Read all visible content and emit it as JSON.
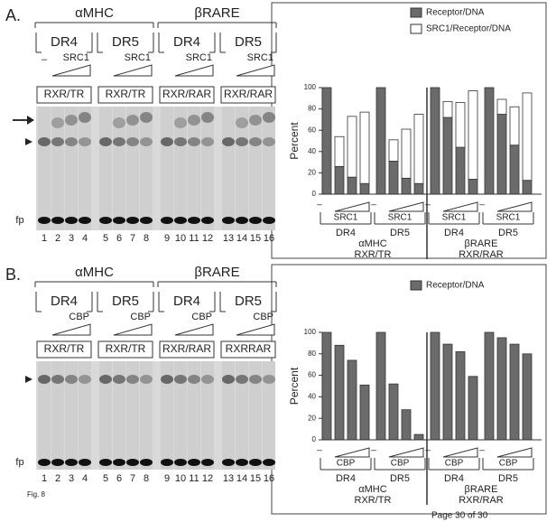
{
  "figure": {
    "page_footer": "Page 30 of 30",
    "fig_label": "Fig. 8",
    "gels": [
      {
        "letter": "A.",
        "promoters": [
          "αMHC",
          "βRARE"
        ],
        "elements": [
          "DR4",
          "DR5",
          "DR4",
          "DR5"
        ],
        "factors": [
          "SRC1",
          "SRC1",
          "SRC1",
          "SRC1"
        ],
        "minus": "–",
        "complexes": [
          "RXR/TR",
          "RXR/TR",
          "RXR/RAR",
          "RXR/RAR"
        ],
        "free_probe": "fp",
        "lanes": [
          "1",
          "2",
          "3",
          "4",
          "5",
          "6",
          "7",
          "8",
          "9",
          "10",
          "11",
          "12",
          "13",
          "14",
          "15",
          "16"
        ]
      },
      {
        "letter": "B.",
        "promoters": [
          "αMHC",
          "βRARE"
        ],
        "elements": [
          "DR4",
          "DR5",
          "DR4",
          "DR5"
        ],
        "factors": [
          "CBP",
          "CBP",
          "CBP",
          "CBP"
        ],
        "complexes": [
          "RXR/TR",
          "RXR/TR",
          "RXR/RAR",
          "RXRRAR"
        ],
        "free_probe": "fp",
        "lanes": [
          "1",
          "2",
          "3",
          "4",
          "5",
          "6",
          "7",
          "8",
          "9",
          "10",
          "11",
          "12",
          "13",
          "14",
          "15",
          "16"
        ]
      }
    ]
  },
  "chart_data": [
    {
      "type": "bar",
      "stacked": true,
      "y_label": "Percent",
      "ylim": [
        0,
        100
      ],
      "yticks": [
        0,
        20,
        40,
        60,
        80,
        100
      ],
      "series": [
        {
          "name": "Receptor/DNA",
          "color": "#6b6b6b",
          "values": [
            100,
            26,
            16,
            10,
            100,
            31,
            15,
            10,
            100,
            72,
            44,
            14,
            100,
            75,
            46,
            13
          ]
        },
        {
          "name": "SRC1/Receptor/DNA",
          "color": "#ffffff",
          "values": [
            0,
            28,
            57,
            67,
            0,
            20,
            46,
            65,
            0,
            15,
            42,
            83,
            0,
            14,
            36,
            82
          ]
        }
      ],
      "minus": [
        "–",
        "–",
        "–",
        "–"
      ],
      "factors": [
        "SRC1",
        "SRC1",
        "SRC1",
        "SRC1"
      ],
      "elements": [
        "DR4",
        "DR5",
        "DR4",
        "DR5"
      ],
      "promoters": [
        "αMHC",
        "βRARE"
      ],
      "complexes": [
        "RXR/TR",
        "RXR/RAR"
      ]
    },
    {
      "type": "bar",
      "stacked": true,
      "y_label": "Percent",
      "ylim": [
        0,
        100
      ],
      "yticks": [
        0,
        20,
        40,
        60,
        80,
        100
      ],
      "series": [
        {
          "name": "Receptor/DNA",
          "color": "#6b6b6b",
          "values": [
            100,
            88,
            74,
            51,
            100,
            52,
            28,
            5,
            100,
            89,
            82,
            59,
            100,
            95,
            89,
            80
          ]
        }
      ],
      "minus": [
        "–",
        "–",
        "–",
        "–"
      ],
      "factors": [
        "CBP",
        "CBP",
        "CBP",
        "CBP"
      ],
      "elements": [
        "DR4",
        "DR5",
        "DR4",
        "DR5"
      ],
      "promoters": [
        "αMHC",
        "βRARE"
      ],
      "complexes": [
        "RXR/TR",
        "RXR/RAR"
      ]
    }
  ]
}
